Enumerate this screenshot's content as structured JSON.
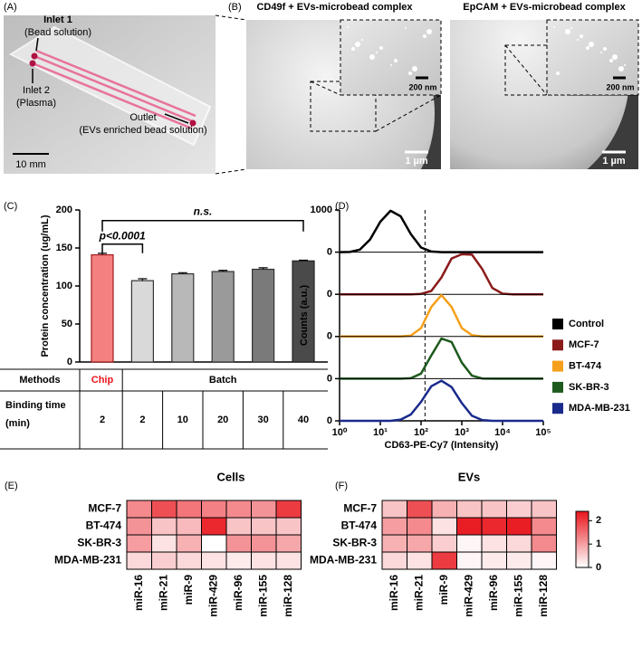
{
  "figure": {
    "panel_a": {
      "label": "(A)",
      "inlet1": "Inlet 1",
      "inlet1_note": "(Bead solution)",
      "inlet2": "Inlet 2",
      "inlet2_note": "(Plasma)",
      "outlet": "Outlet",
      "outlet_note": "(EVs enriched bead solution)",
      "scale_bar": "10 mm"
    },
    "panel_b": {
      "label": "(B)",
      "images": [
        {
          "title": "CD49f + EVs-microbead complex",
          "inset_scale": "200 nm",
          "scale": "1 µm"
        },
        {
          "title": "EpCAM + EVs-microbead complex",
          "inset_scale": "200 nm",
          "scale": "1 µm"
        }
      ]
    }
  },
  "chart_data": [
    {
      "type": "bar",
      "panel": "(C)",
      "ylabel": "Protein concentration (ug/mL)",
      "values": [
        141,
        107,
        116,
        119,
        122,
        133
      ],
      "errors": [
        2,
        2.5,
        1.5,
        1.5,
        2,
        1
      ],
      "colors": [
        "#f4817f",
        "#d9d9d9",
        "#b8b8b8",
        "#9a9a9a",
        "#7a7a7a",
        "#4a4a4a"
      ],
      "edge_colors": [
        "#a11d1d",
        "#333333",
        "#333333",
        "#333333",
        "#333333",
        "#222222"
      ],
      "ylim": [
        0,
        200
      ],
      "yticks": [
        0,
        50,
        100,
        150,
        200
      ],
      "annotations": [
        "p<0.0001",
        "n.s."
      ],
      "highlight_color": "#e8141b",
      "table": {
        "rows": [
          [
            "Methods",
            "Chip",
            "Batch"
          ],
          [
            "Binding time (min)",
            "2",
            "2",
            "10",
            "20",
            "30",
            "40"
          ]
        ]
      }
    },
    {
      "type": "ridgeline",
      "panel": "(D)",
      "xlabel": "CD63-PE-Cy7 (Intensity)",
      "ylabel": "Counts (a.u.)",
      "log_x": true,
      "x": [
        1,
        1.78,
        3.16,
        5.62,
        10,
        17.8,
        31.6,
        56.2,
        100,
        178,
        316,
        562,
        1000,
        1778,
        3162,
        5623,
        10000,
        17783,
        31623,
        56234,
        100000
      ],
      "xlim": [
        1,
        100000
      ],
      "xticks": [
        {
          "value": 1,
          "label": "10⁰"
        },
        {
          "value": 10,
          "label": "10¹"
        },
        {
          "value": 100,
          "label": "10²"
        },
        {
          "value": 1000,
          "label": "10³"
        },
        {
          "value": 10000,
          "label": "10⁴"
        },
        {
          "value": 100000,
          "label": "10⁵"
        }
      ],
      "ylim": [
        0,
        1000
      ],
      "yticks": [
        0,
        1000
      ],
      "reference_x": 125,
      "series": [
        {
          "name": "Control",
          "color": "#000000",
          "values": [
            0,
            5,
            60,
            300,
            720,
            980,
            850,
            430,
            110,
            15,
            0,
            0,
            0,
            0,
            0,
            0,
            0,
            0,
            0,
            0,
            0
          ]
        },
        {
          "name": "MCF-7",
          "color": "#8b1a1a",
          "values": [
            0,
            0,
            0,
            0,
            0,
            0,
            0,
            0,
            10,
            80,
            400,
            850,
            950,
            940,
            600,
            150,
            15,
            0,
            0,
            0,
            0
          ]
        },
        {
          "name": "BT-474",
          "color": "#f5a01a",
          "values": [
            0,
            0,
            0,
            0,
            0,
            0,
            0,
            20,
            200,
            700,
            980,
            700,
            200,
            30,
            0,
            0,
            0,
            0,
            0,
            0,
            0
          ]
        },
        {
          "name": "SK-BR-3",
          "color": "#1e5a1e",
          "values": [
            0,
            0,
            0,
            0,
            0,
            0,
            0,
            10,
            120,
            550,
            950,
            870,
            380,
            70,
            5,
            0,
            0,
            0,
            0,
            0,
            0
          ]
        },
        {
          "name": "MDA-MB-231",
          "color": "#1a2a8c",
          "values": [
            0,
            0,
            0,
            0,
            0,
            0,
            30,
            150,
            450,
            820,
            950,
            800,
            420,
            120,
            20,
            0,
            0,
            0,
            0,
            0,
            0
          ]
        }
      ]
    },
    {
      "type": "heatmap",
      "panel": "(E)",
      "title": "Cells",
      "rows": [
        "MCF-7",
        "BT-474",
        "SK-BR-3",
        "MDA-MB-231"
      ],
      "columns": [
        "miR-16",
        "miR-21",
        "miR-9",
        "miR-429",
        "miR-96",
        "miR-155",
        "miR-128"
      ],
      "values": [
        [
          1.2,
          1.8,
          1.4,
          1.3,
          1.2,
          1.1,
          2.0
        ],
        [
          1.1,
          0.6,
          0.7,
          2.2,
          0.6,
          0.6,
          0.6
        ],
        [
          1.0,
          0.3,
          0.8,
          0.0,
          1.1,
          1.1,
          0.9
        ],
        [
          0.4,
          0.5,
          0.4,
          0.3,
          0.2,
          0.3,
          0.3
        ]
      ],
      "zlim": [
        0,
        2.4
      ],
      "colors": [
        "#ffffff",
        "#e8141b"
      ]
    },
    {
      "type": "heatmap",
      "panel": "(F)",
      "title": "EVs",
      "rows": [
        "MCF-7",
        "BT-474",
        "SK-BR-3",
        "MDA-MB-231"
      ],
      "columns": [
        "miR-16",
        "miR-21",
        "miR-9",
        "miR-429",
        "miR-96",
        "miR-155",
        "miR-128"
      ],
      "values": [
        [
          0.6,
          1.8,
          0.8,
          0.6,
          0.6,
          0.5,
          0.6
        ],
        [
          1.0,
          1.2,
          0.3,
          2.3,
          2.2,
          2.3,
          1.2
        ],
        [
          0.8,
          0.9,
          0.5,
          0.1,
          0.3,
          0.4,
          1.2
        ],
        [
          0.4,
          0.3,
          2.0,
          0.1,
          0.2,
          0.2,
          0.1
        ]
      ],
      "zlim": [
        0,
        2.4
      ],
      "colors": [
        "#ffffff",
        "#e8141b"
      ],
      "colorbar_ticks": [
        0,
        1,
        2
      ]
    }
  ]
}
